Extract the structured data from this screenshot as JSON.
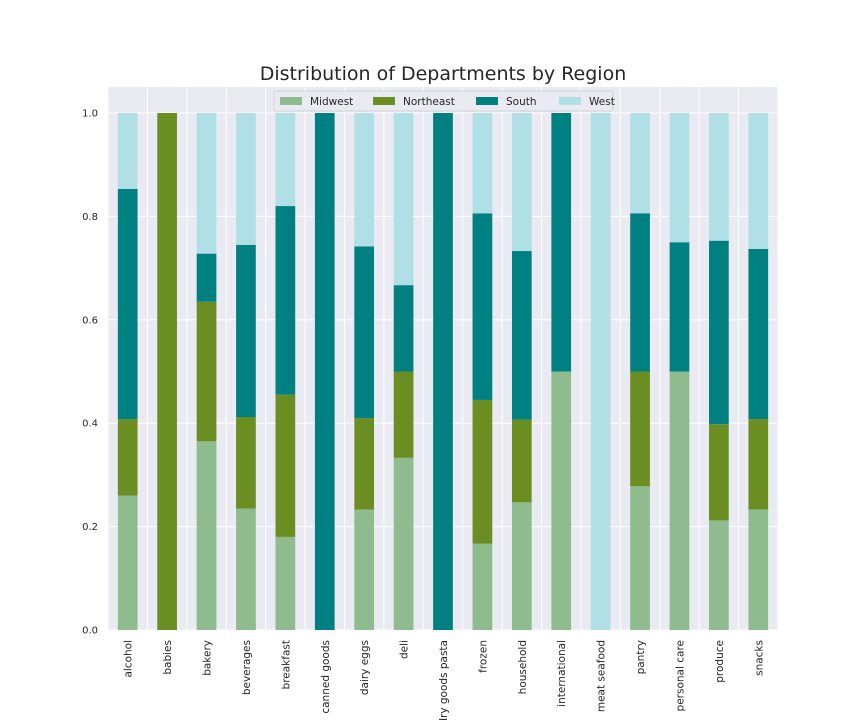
{
  "chart_data": {
    "type": "bar",
    "stacked": true,
    "title": "Distribution of Departments by Region",
    "xlabel": "",
    "ylabel": "",
    "ylim": [
      0,
      1.0
    ],
    "yticks": [
      "0.0",
      "0.2",
      "0.4",
      "0.6",
      "0.8",
      "1.0"
    ],
    "grid": true,
    "legend_position": "top-center",
    "categories": [
      "alcohol",
      "babies",
      "bakery",
      "beverages",
      "breakfast",
      "canned goods",
      "dairy eggs",
      "deli",
      "dry goods pasta",
      "frozen",
      "household",
      "international",
      "meat seafood",
      "pantry",
      "personal care",
      "produce",
      "snacks"
    ],
    "series": [
      {
        "name": "Midwest",
        "color": "#8fbc8f",
        "values": [
          0.26,
          0.0,
          0.365,
          0.235,
          0.18,
          0.0,
          0.233,
          0.333,
          0.0,
          0.167,
          0.247,
          0.5,
          0.0,
          0.278,
          0.5,
          0.212,
          0.233
        ]
      },
      {
        "name": "Northeast",
        "color": "#6b8e23",
        "values": [
          0.148,
          1.0,
          0.27,
          0.177,
          0.275,
          0.0,
          0.177,
          0.167,
          0.0,
          0.278,
          0.16,
          0.0,
          0.0,
          0.222,
          0.0,
          0.186,
          0.175
        ]
      },
      {
        "name": "South",
        "color": "#008080",
        "values": [
          0.445,
          0.0,
          0.093,
          0.333,
          0.365,
          1.0,
          0.332,
          0.167,
          1.0,
          0.361,
          0.326,
          0.5,
          0.0,
          0.306,
          0.25,
          0.355,
          0.329
        ]
      },
      {
        "name": "West",
        "color": "#b0dfe5",
        "values": [
          0.147,
          0.0,
          0.272,
          0.255,
          0.18,
          0.0,
          0.258,
          0.333,
          0.0,
          0.194,
          0.267,
          0.0,
          1.0,
          0.194,
          0.25,
          0.247,
          0.263
        ]
      }
    ]
  }
}
